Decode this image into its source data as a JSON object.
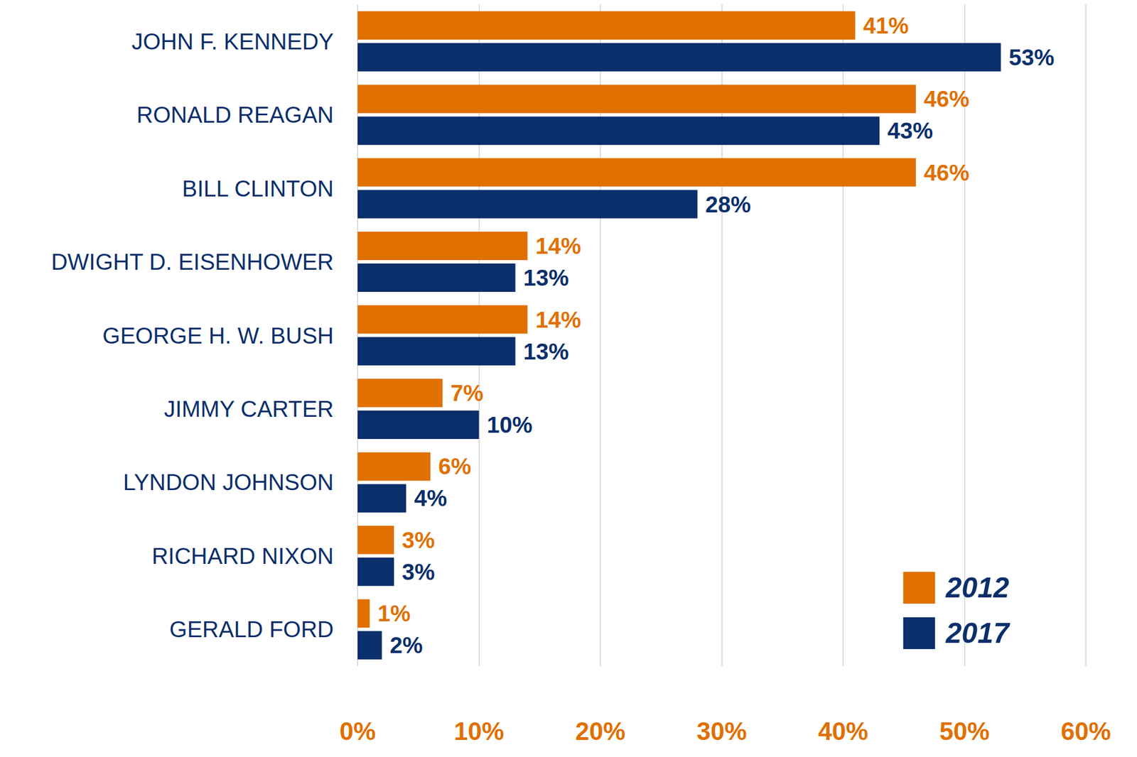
{
  "chart_data": {
    "type": "bar",
    "orientation": "horizontal",
    "categories": [
      "JOHN F. KENNEDY",
      "RONALD REAGAN",
      "BILL CLINTON",
      "DWIGHT D. EISENHOWER",
      "GEORGE H. W. BUSH",
      "JIMMY CARTER",
      "LYNDON JOHNSON",
      "RICHARD NIXON",
      "GERALD FORD"
    ],
    "series": [
      {
        "name": "2012",
        "color": "#e07000",
        "values": [
          41,
          46,
          46,
          14,
          14,
          7,
          6,
          3,
          1
        ],
        "value_labels": [
          "41%",
          "46%",
          "46%",
          "14%",
          "14%",
          "7%",
          "6%",
          "3%",
          "1%"
        ]
      },
      {
        "name": "2017",
        "color": "#0b2f6b",
        "values": [
          53,
          43,
          28,
          13,
          13,
          10,
          4,
          3,
          2
        ],
        "value_labels": [
          "53%",
          "43%",
          "28%",
          "13%",
          "13%",
          "10%",
          "4%",
          "3%",
          "2%"
        ]
      }
    ],
    "xlim": [
      0,
      60
    ],
    "xticks": [
      {
        "value": 0,
        "label": "0%"
      },
      {
        "value": 10,
        "label": "10%"
      },
      {
        "value": 20,
        "label": "20%"
      },
      {
        "value": 30,
        "label": "30%"
      },
      {
        "value": 40,
        "label": "40%"
      },
      {
        "value": 50,
        "label": "50%"
      },
      {
        "value": 60,
        "label": "60%"
      }
    ],
    "grid": true,
    "data_labels": true,
    "legend": "lower right"
  }
}
